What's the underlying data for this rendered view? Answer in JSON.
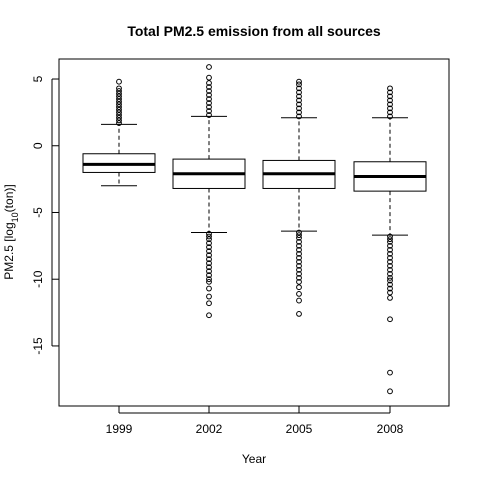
{
  "chart_data": {
    "type": "box",
    "title": "Total PM2.5 emission from all sources",
    "xlabel": "Year",
    "ylabel_main": "PM2.5 [log",
    "ylabel_sub": "10",
    "ylabel_end": "(ton)]",
    "categories": [
      "1999",
      "2002",
      "2005",
      "2008"
    ],
    "y_ticks": [
      5,
      0,
      -5,
      -10,
      -15
    ],
    "y_tick_labels": [
      "5",
      "0",
      "-5",
      "-10",
      "-15"
    ],
    "ylim": [
      -19.5,
      6.5
    ],
    "grid": false,
    "boxes": [
      {
        "category": "1999",
        "whisker_low": -3.0,
        "q1": -2.0,
        "median": -1.4,
        "q3": -0.6,
        "whisker_high": 1.6,
        "upper_outliers": [
          1.7,
          1.9,
          2.1,
          2.3,
          2.5,
          2.7,
          2.9,
          3.1,
          3.3,
          3.5,
          3.7,
          3.9,
          4.1,
          4.3,
          4.8
        ],
        "lower_outliers": []
      },
      {
        "category": "2002",
        "whisker_low": -6.5,
        "q1": -3.2,
        "median": -2.1,
        "q3": -1.0,
        "whisker_high": 2.2,
        "upper_outliers": [
          2.3,
          2.6,
          2.9,
          3.2,
          3.5,
          3.8,
          4.1,
          4.4,
          4.7,
          5.1,
          5.9
        ],
        "lower_outliers": [
          -6.6,
          -6.8,
          -7.0,
          -7.3,
          -7.6,
          -7.9,
          -8.2,
          -8.5,
          -8.8,
          -9.1,
          -9.4,
          -9.7,
          -10.0,
          -10.2,
          -10.7,
          -11.3,
          -11.8,
          -12.7
        ]
      },
      {
        "category": "2005",
        "whisker_low": -6.4,
        "q1": -3.2,
        "median": -2.1,
        "q3": -1.1,
        "whisker_high": 2.1,
        "upper_outliers": [
          2.2,
          2.5,
          2.8,
          3.1,
          3.4,
          3.7,
          4.0,
          4.3,
          4.6,
          4.8
        ],
        "lower_outliers": [
          -6.5,
          -6.7,
          -6.9,
          -7.2,
          -7.5,
          -7.8,
          -8.1,
          -8.4,
          -8.7,
          -9.0,
          -9.3,
          -9.6,
          -9.9,
          -10.2,
          -10.6,
          -11.1,
          -11.6,
          -12.6
        ]
      },
      {
        "category": "2008",
        "whisker_low": -6.7,
        "q1": -3.4,
        "median": -2.3,
        "q3": -1.2,
        "whisker_high": 2.1,
        "upper_outliers": [
          2.2,
          2.5,
          2.8,
          3.1,
          3.4,
          3.7,
          4.0,
          4.3
        ],
        "lower_outliers": [
          -6.8,
          -7.0,
          -7.2,
          -7.5,
          -7.8,
          -8.1,
          -8.4,
          -8.7,
          -9.0,
          -9.3,
          -9.6,
          -9.9,
          -10.1,
          -10.4,
          -10.7,
          -11.0,
          -11.4,
          -13.0,
          -17.0,
          -18.4
        ]
      }
    ]
  }
}
